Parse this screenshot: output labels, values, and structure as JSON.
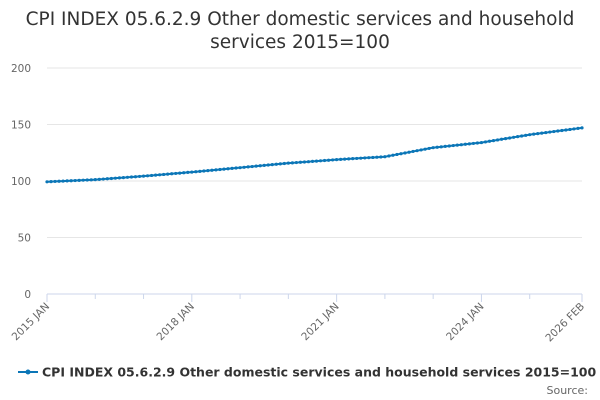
{
  "chart_data": {
    "type": "line",
    "title_lines": [
      "CPI INDEX 05.6.2.9 Other domestic services and household",
      "services 2015=100"
    ],
    "x_start": "2015-01",
    "x_end": "2026-02",
    "x_tick_labels": [
      {
        "date": "2015-01",
        "label": "2015 JAN"
      },
      {
        "date": "2018-01",
        "label": "2018 JAN"
      },
      {
        "date": "2021-01",
        "label": "2021 JAN"
      },
      {
        "date": "2024-01",
        "label": "2024 JAN"
      },
      {
        "date": "2026-02",
        "label": "2026 FEB"
      }
    ],
    "x_minor_ticks_years": [
      "2016-01",
      "2017-01",
      "2019-01",
      "2020-01",
      "2022-01",
      "2023-01",
      "2025-01"
    ],
    "ylim": [
      0,
      200
    ],
    "y_ticks": [
      0,
      50,
      100,
      150,
      200
    ],
    "grid": true,
    "legend_position": "bottom",
    "color": "#0b76b7",
    "series": [
      {
        "name": "CPI INDEX 05.6.2.9 Other domestic services and household services 2015=100",
        "anchors": [
          {
            "date": "2015-01",
            "value": 99.3
          },
          {
            "date": "2016-01",
            "value": 101.2
          },
          {
            "date": "2017-01",
            "value": 104.3
          },
          {
            "date": "2018-01",
            "value": 107.9
          },
          {
            "date": "2019-01",
            "value": 111.8
          },
          {
            "date": "2020-01",
            "value": 115.8
          },
          {
            "date": "2021-01",
            "value": 118.9
          },
          {
            "date": "2022-01",
            "value": 121.5
          },
          {
            "date": "2023-01",
            "value": 129.5
          },
          {
            "date": "2024-01",
            "value": 134.0
          },
          {
            "date": "2025-01",
            "value": 141.0
          },
          {
            "date": "2026-02",
            "value": 147.0
          }
        ]
      }
    ]
  },
  "source_label": "Source:"
}
